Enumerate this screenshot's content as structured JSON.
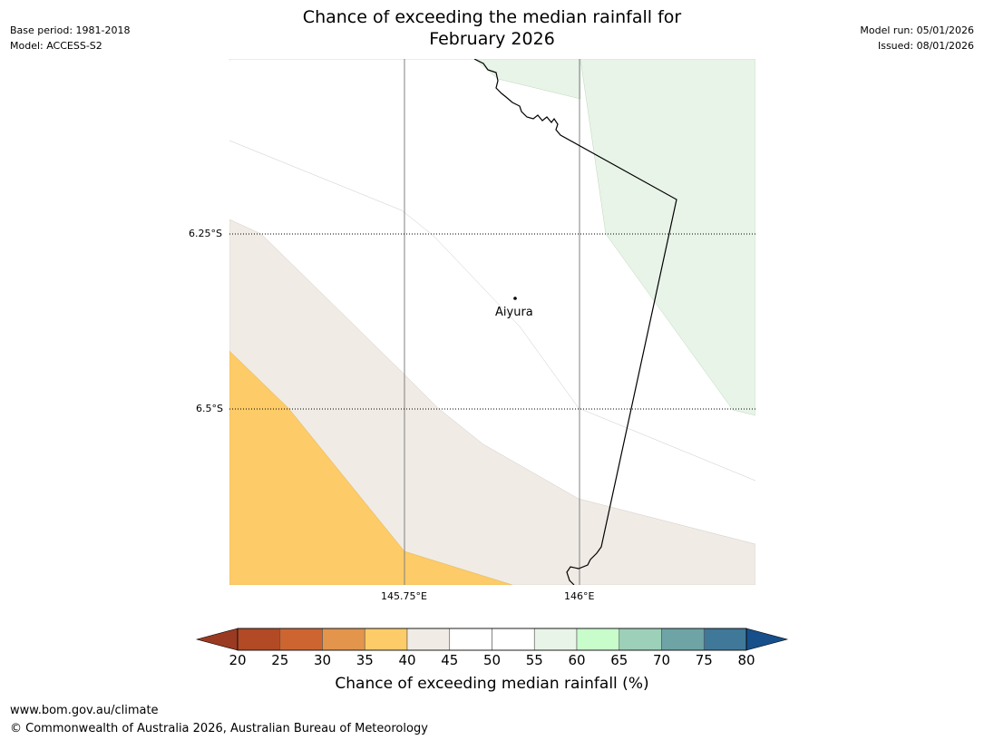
{
  "header": {
    "base_period": "Base period: 1981-2018",
    "model": "Model: ACCESS-S2",
    "title_line1": "Chance of exceeding the median rainfall for",
    "title_line2": "February 2026",
    "model_run": "Model run: 05/01/2026",
    "issued": "Issued: 08/01/2026"
  },
  "map": {
    "lat_labels": [
      "6.25°S",
      "6.5°S"
    ],
    "lon_labels": [
      "145.75°E",
      "146°E"
    ],
    "place_name": "Aiyura",
    "region_colors": {
      "band_35_40": "#fdcb67",
      "band_40_45": "#f0ebe5",
      "band_55_60": "#e8f4e8"
    }
  },
  "colorbar": {
    "title": "Chance of exceeding median rainfall (%)",
    "ticks": [
      "20",
      "25",
      "30",
      "35",
      "40",
      "45",
      "50",
      "55",
      "60",
      "65",
      "70",
      "75",
      "80"
    ],
    "under_color": "#9b3a22",
    "over_color": "#164f8a",
    "colors": [
      "#b14a25",
      "#cd6531",
      "#e3954b",
      "#fdcb67",
      "#f0ebe5",
      "#ffffff",
      "#ffffff",
      "#e8f4e8",
      "#c8fccb",
      "#9dd0b9",
      "#6ea4a6",
      "#3f7899"
    ]
  },
  "footer": {
    "url": "www.bom.gov.au/climate",
    "copyright": "© Commonwealth of Australia 2026, Australian Bureau of Meteorology"
  }
}
